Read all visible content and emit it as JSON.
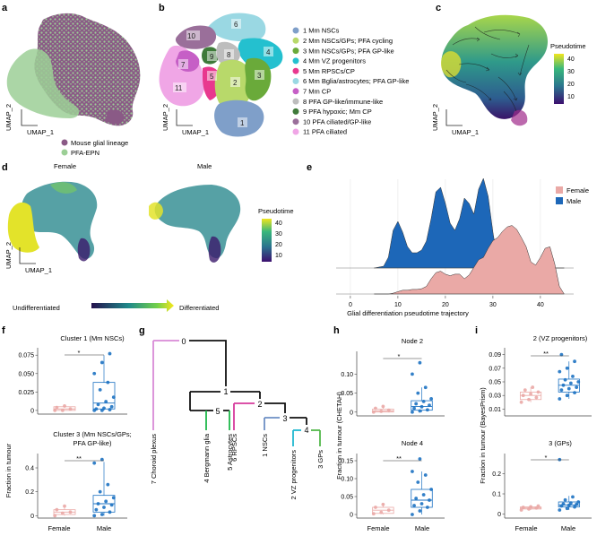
{
  "panels": {
    "a": {
      "label": "a",
      "xlabel": "UMAP_1",
      "ylabel": "UMAP_2",
      "legend": [
        {
          "label": "Mouse glial lineage",
          "color": "#8a5a86"
        },
        {
          "label": "PFA-EPN",
          "color": "#9ccf96"
        }
      ]
    },
    "b": {
      "label": "b",
      "xlabel": "UMAP_1",
      "ylabel": "UMAP_2",
      "clusters": [
        {
          "num": "1",
          "label": "1 Mm NSCs",
          "color": "#7f9fc9"
        },
        {
          "num": "2",
          "label": "2 Mm NSCs/GPs; PFA cycling",
          "color": "#b8d96a"
        },
        {
          "num": "3",
          "label": "3 Mm NSCs/GPs; PFA GP-like",
          "color": "#6aaa3a"
        },
        {
          "num": "4",
          "label": "4 Mm VZ progenitors",
          "color": "#24c0cf"
        },
        {
          "num": "5",
          "label": "5 Mm RPSCs/CP",
          "color": "#e8388e"
        },
        {
          "num": "6",
          "label": "6 Mm Bglia/astrocytes; PFA GP-like",
          "color": "#9ad8e3"
        },
        {
          "num": "7",
          "label": "7 Mm CP",
          "color": "#c65fc6"
        },
        {
          "num": "8",
          "label": "8 PFA GP-like/immune-like",
          "color": "#bdbdbd"
        },
        {
          "num": "9",
          "label": "9 PFA hypoxic; Mm CP",
          "color": "#3f7a3a"
        },
        {
          "num": "10",
          "label": "10 PFA ciliated/GP-like",
          "color": "#9a6f9a"
        },
        {
          "num": "11",
          "label": "11 PFA ciliated",
          "color": "#f0a6e6"
        }
      ]
    },
    "c": {
      "label": "c",
      "xlabel": "UMAP_1",
      "ylabel": "UMAP_2",
      "colorbar_title": "Pseudotime",
      "colorbar_ticks": [
        "40",
        "30",
        "20",
        "10"
      ]
    },
    "d": {
      "label": "d",
      "female_title": "Female",
      "male_title": "Male",
      "xlabel": "UMAP_1",
      "ylabel": "UMAP_2",
      "colorbar_title": "Pseudotime",
      "colorbar_ticks": [
        "40",
        "30",
        "20",
        "10"
      ],
      "arrow_left": "Undifferentiated",
      "arrow_right": "Differentiated"
    },
    "e": {
      "label": "e",
      "xlabel": "Glial differentiation pseudotime trajectory",
      "legend": [
        {
          "label": "Female",
          "color": "#eaa9a6"
        },
        {
          "label": "Male",
          "color": "#1d67b8"
        }
      ]
    },
    "f": {
      "label": "f",
      "ylabel": "Fraction in tumour",
      "top_title": "Cluster 1 (Mm NSCs)",
      "top_sig": "*",
      "bottom_title_1": "Cluster 3 (Mm NSCs/GPs;",
      "bottom_title_2": "PFA GP-like)",
      "bottom_sig": "**",
      "groups": [
        "Female",
        "Male"
      ]
    },
    "g": {
      "label": "g",
      "nodes": [
        "0",
        "1",
        "2",
        "3",
        "4",
        "5"
      ],
      "leaves": [
        "7 Choroid plexus",
        "4 Bergmann glia",
        "5 Astrocytes",
        "6 RPSCs",
        "1 NSCs",
        "2 VZ progenitors",
        "3 GPs"
      ]
    },
    "h": {
      "label": "h",
      "ylabel": "Fraction in tumour (CHETAH)",
      "top_title": "Node 2",
      "top_sig": "*",
      "bottom_title": "Node 4",
      "bottom_sig": "**",
      "groups": [
        "Female",
        "Male"
      ]
    },
    "i": {
      "label": "i",
      "ylabel": "Fraction in tumour (BayesPrism)",
      "top_title": "2 (VZ progenitors)",
      "top_sig": "**",
      "bottom_title": "3 (GPs)",
      "bottom_sig": "*",
      "groups": [
        "Female",
        "Male"
      ]
    }
  },
  "chart_data": [
    {
      "type": "area",
      "panel": "e",
      "title": "",
      "xlabel": "Glial differentiation pseudotime trajectory",
      "ylabel": "",
      "xlim": [
        -3,
        47
      ],
      "x_ticks": [
        0,
        10,
        20,
        30,
        40
      ],
      "x": [
        5,
        7,
        8,
        9,
        10,
        11,
        12,
        13,
        14,
        15,
        16,
        17,
        18,
        19,
        20,
        21,
        22,
        23,
        24,
        25,
        26,
        27,
        28,
        29,
        30,
        31,
        32,
        33,
        34,
        35,
        36,
        37,
        38,
        39,
        40,
        41,
        42,
        43,
        44,
        45
      ],
      "series": [
        {
          "name": "Male",
          "color": "#1d67b8",
          "values": [
            0,
            0.02,
            0.12,
            0.42,
            0.52,
            0.4,
            0.24,
            0.17,
            0.17,
            0.2,
            0.3,
            0.55,
            0.85,
            0.9,
            0.72,
            0.5,
            0.42,
            0.55,
            0.78,
            0.72,
            0.6,
            0.88,
            1.0,
            0.8,
            0.4,
            0.08,
            0.0,
            0,
            0,
            0,
            0,
            0,
            0,
            0,
            0,
            0,
            0,
            0,
            0,
            0
          ]
        },
        {
          "name": "Female",
          "color": "#eaa9a6",
          "values": [
            0,
            0,
            0,
            0.01,
            0.03,
            0.05,
            0.05,
            0.06,
            0.06,
            0.07,
            0.1,
            0.2,
            0.28,
            0.3,
            0.26,
            0.24,
            0.26,
            0.26,
            0.2,
            0.25,
            0.35,
            0.45,
            0.48,
            0.6,
            0.7,
            0.74,
            0.82,
            0.88,
            0.9,
            0.85,
            0.74,
            0.62,
            0.42,
            0.38,
            0.48,
            0.6,
            0.62,
            0.4,
            0.1,
            0
          ]
        }
      ]
    },
    {
      "type": "scatter",
      "panel": "f-top",
      "title": "Cluster 1 (Mm NSCs)",
      "ylim": [
        -0.005,
        0.085
      ],
      "y_ticks": [
        0,
        0.025,
        0.05,
        0.075
      ],
      "y_tick_labels": [
        "0",
        "0.025",
        "0.050",
        "0.075"
      ],
      "categories": [
        "Female",
        "Male"
      ],
      "series": [
        {
          "name": "Female",
          "color": "#eaa9a6",
          "box": {
            "q1": 0.0,
            "median": 0.002,
            "q3": 0.005,
            "low": 0.0,
            "high": 0.006
          },
          "points": [
            0.0,
            0.0,
            0.002,
            0.004,
            0.006
          ]
        },
        {
          "name": "Male",
          "color": "#1d72c2",
          "box": {
            "q1": 0.002,
            "median": 0.01,
            "q3": 0.038,
            "low": 0.0,
            "high": 0.075
          },
          "points": [
            0.0,
            0.0,
            0.001,
            0.002,
            0.003,
            0.005,
            0.008,
            0.012,
            0.018,
            0.028,
            0.038,
            0.05,
            0.065,
            0.077
          ]
        }
      ]
    },
    {
      "type": "scatter",
      "panel": "f-bottom",
      "title": "Cluster 3 (Mm NSCs/GPs; PFA GP-like)",
      "ylim": [
        -0.02,
        0.52
      ],
      "y_ticks": [
        0,
        0.2,
        0.4
      ],
      "y_tick_labels": [
        "0",
        "0.2",
        "0.4"
      ],
      "categories": [
        "Female",
        "Male"
      ],
      "series": [
        {
          "name": "Female",
          "color": "#eaa9a6",
          "box": {
            "q1": 0.01,
            "median": 0.03,
            "q3": 0.05,
            "low": 0.0,
            "high": 0.08
          },
          "points": [
            0.0,
            0.02,
            0.03,
            0.05,
            0.08
          ]
        },
        {
          "name": "Male",
          "color": "#1d72c2",
          "box": {
            "q1": 0.03,
            "median": 0.1,
            "q3": 0.17,
            "low": 0.0,
            "high": 0.45
          },
          "points": [
            0.0,
            0.01,
            0.03,
            0.05,
            0.07,
            0.09,
            0.1,
            0.12,
            0.15,
            0.2,
            0.26,
            0.44,
            0.47
          ]
        }
      ]
    },
    {
      "type": "scatter",
      "panel": "h-top",
      "title": "Node 2",
      "ylim": [
        -0.01,
        0.16
      ],
      "y_ticks": [
        0,
        0.05,
        0.1
      ],
      "y_tick_labels": [
        "0",
        "0.05",
        "0.10"
      ],
      "categories": [
        "Female",
        "Male"
      ],
      "series": [
        {
          "name": "Female",
          "color": "#eaa9a6",
          "box": {
            "q1": 0.0,
            "median": 0.003,
            "q3": 0.008,
            "low": 0.0,
            "high": 0.015
          },
          "points": [
            0.0,
            0.002,
            0.005,
            0.01,
            0.015
          ]
        },
        {
          "name": "Male",
          "color": "#1d72c2",
          "box": {
            "q1": 0.005,
            "median": 0.015,
            "q3": 0.03,
            "low": 0.0,
            "high": 0.065
          },
          "points": [
            0.0,
            0.003,
            0.006,
            0.01,
            0.014,
            0.018,
            0.022,
            0.028,
            0.035,
            0.05,
            0.065,
            0.1,
            0.13
          ]
        }
      ]
    },
    {
      "type": "scatter",
      "panel": "h-bottom",
      "title": "Node 4",
      "ylim": [
        -0.01,
        0.17
      ],
      "y_ticks": [
        0,
        0.05,
        0.1,
        0.15
      ],
      "y_tick_labels": [
        "0",
        "0.05",
        "0.10",
        "0.15"
      ],
      "categories": [
        "Female",
        "Male"
      ],
      "series": [
        {
          "name": "Female",
          "color": "#eaa9a6",
          "box": {
            "q1": 0.003,
            "median": 0.012,
            "q3": 0.02,
            "low": 0.0,
            "high": 0.03
          },
          "points": [
            0.002,
            0.006,
            0.012,
            0.02,
            0.028
          ]
        },
        {
          "name": "Male",
          "color": "#1d72c2",
          "box": {
            "q1": 0.02,
            "median": 0.04,
            "q3": 0.07,
            "low": 0.0,
            "high": 0.12
          },
          "points": [
            0.0,
            0.01,
            0.02,
            0.025,
            0.03,
            0.04,
            0.045,
            0.055,
            0.07,
            0.09,
            0.11,
            0.12,
            0.155
          ]
        }
      ]
    },
    {
      "type": "scatter",
      "panel": "i-top",
      "title": "2 (VZ progenitors)",
      "ylim": [
        0.0,
        0.1
      ],
      "y_ticks": [
        0.01,
        0.03,
        0.05,
        0.07,
        0.09
      ],
      "y_tick_labels": [
        "0.01",
        "0.03",
        "0.05",
        "0.07",
        "0.09"
      ],
      "categories": [
        "Female",
        "Male"
      ],
      "series": [
        {
          "name": "Female",
          "color": "#eaa9a6",
          "box": {
            "q1": 0.024,
            "median": 0.03,
            "q3": 0.035,
            "low": 0.02,
            "high": 0.042
          },
          "points": [
            0.02,
            0.024,
            0.027,
            0.03,
            0.032,
            0.035,
            0.038,
            0.042
          ]
        },
        {
          "name": "Male",
          "color": "#1d72c2",
          "box": {
            "q1": 0.035,
            "median": 0.045,
            "q3": 0.054,
            "low": 0.025,
            "high": 0.08
          },
          "points": [
            0.025,
            0.03,
            0.034,
            0.038,
            0.04,
            0.042,
            0.045,
            0.048,
            0.05,
            0.053,
            0.058,
            0.065,
            0.07,
            0.08,
            0.09
          ]
        }
      ]
    },
    {
      "type": "scatter",
      "panel": "i-bottom",
      "title": "3 (GPs)",
      "ylim": [
        -0.02,
        0.3
      ],
      "y_ticks": [
        0,
        0.1,
        0.2
      ],
      "y_tick_labels": [
        "0",
        "0.1",
        "0.2"
      ],
      "categories": [
        "Female",
        "Male"
      ],
      "series": [
        {
          "name": "Female",
          "color": "#eaa9a6",
          "box": {
            "q1": 0.025,
            "median": 0.03,
            "q3": 0.035,
            "low": 0.02,
            "high": 0.04
          },
          "points": [
            0.02,
            0.025,
            0.03,
            0.033,
            0.036,
            0.04
          ]
        },
        {
          "name": "Male",
          "color": "#1d72c2",
          "box": {
            "q1": 0.035,
            "median": 0.045,
            "q3": 0.06,
            "low": 0.02,
            "high": 0.09
          },
          "points": [
            0.02,
            0.028,
            0.035,
            0.04,
            0.044,
            0.048,
            0.05,
            0.055,
            0.06,
            0.07,
            0.085,
            0.27
          ]
        }
      ]
    }
  ]
}
